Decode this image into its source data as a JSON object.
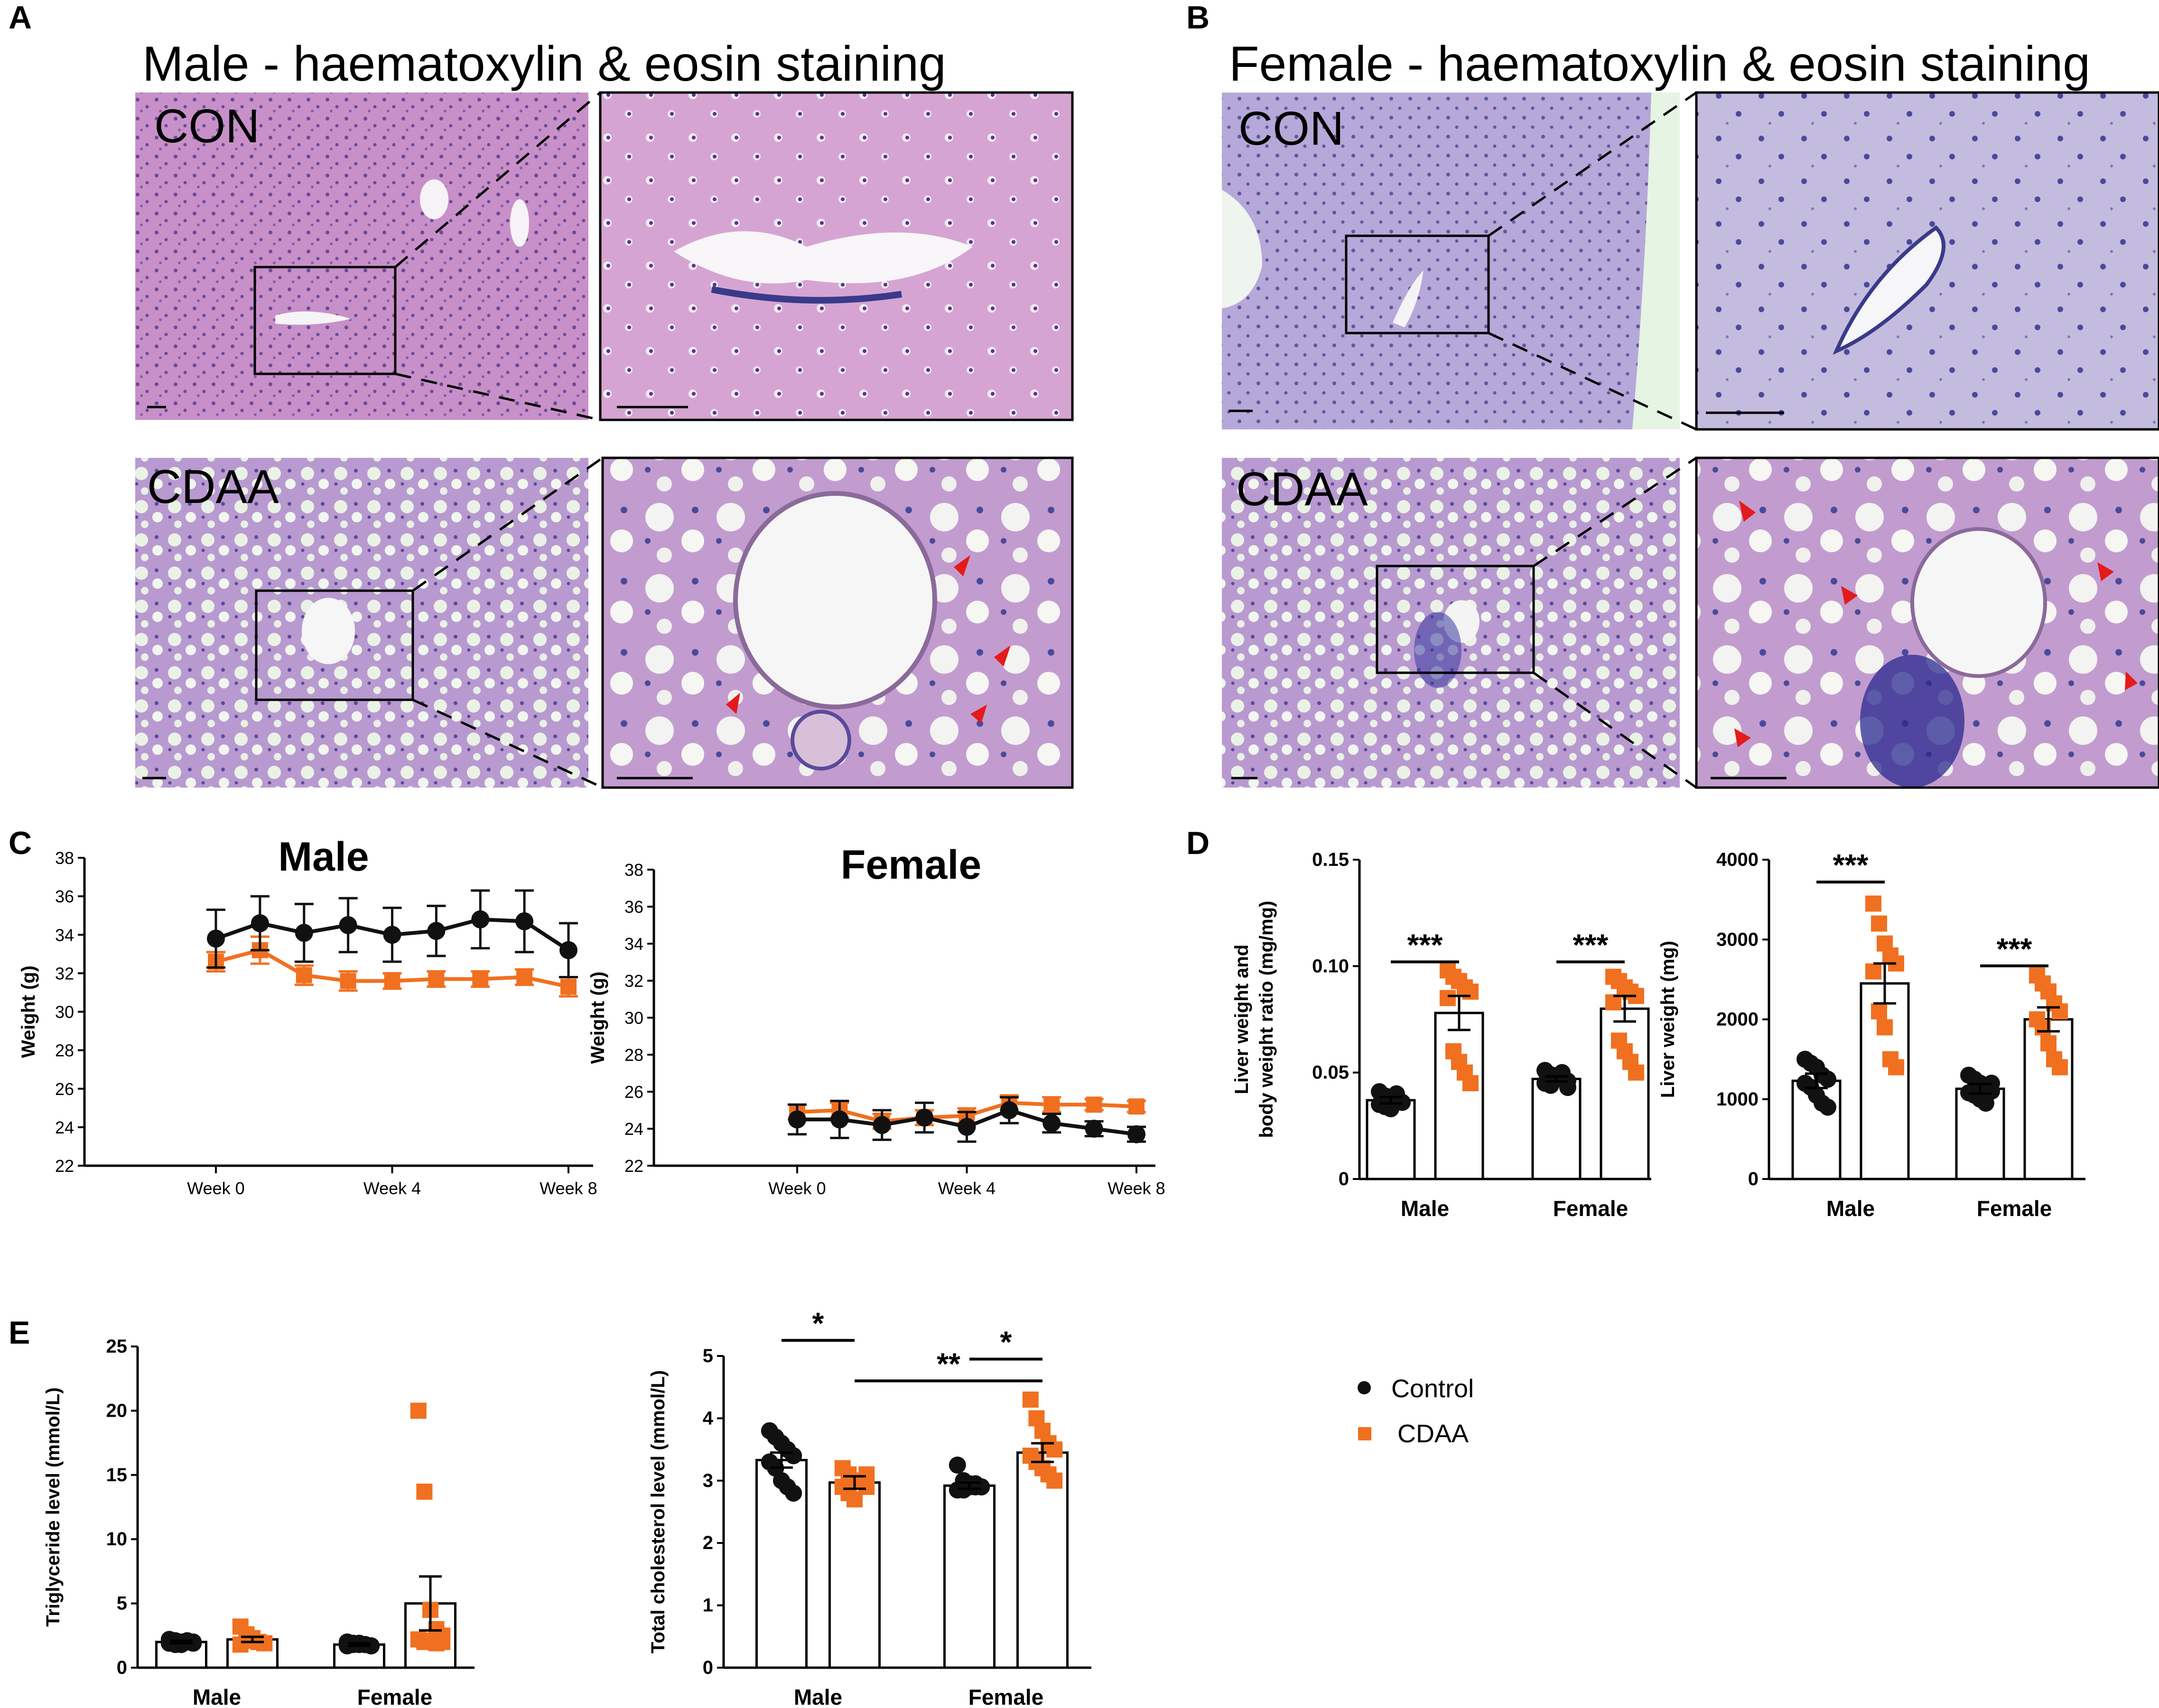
{
  "colors": {
    "control": "#111111",
    "cdaa": "#f07020"
  },
  "panel_labels": {
    "a": "A",
    "b": "B",
    "c": "C",
    "d": "D",
    "e": "E"
  },
  "histology": {
    "male_title": "Male - haematoxylin & eosin staining",
    "female_title": "Female - haematoxylin & eosin staining",
    "con_label": "CON",
    "cdaa_label": "CDAA"
  },
  "legend": {
    "control": "Control",
    "cdaa": "CDAA"
  },
  "chart_data": [
    {
      "id": "c_male",
      "type": "line",
      "title": "Male",
      "xlabel": "",
      "ylabel": "Weight (g)",
      "ylim": [
        22,
        38
      ],
      "yticks": [
        22,
        24,
        26,
        28,
        30,
        32,
        34,
        36,
        38
      ],
      "x": [
        0,
        1,
        2,
        3,
        4,
        5,
        6,
        7,
        8
      ],
      "xticks": [
        {
          "x": 0,
          "label": "Week 0"
        },
        {
          "x": 4,
          "label": "Week 4"
        },
        {
          "x": 8,
          "label": "Week 8"
        }
      ],
      "series": [
        {
          "name": "Control",
          "values": [
            33.8,
            34.6,
            34.1,
            34.5,
            34.0,
            34.2,
            34.8,
            34.7,
            33.2
          ],
          "err": [
            1.5,
            1.4,
            1.5,
            1.4,
            1.4,
            1.3,
            1.5,
            1.6,
            1.4
          ]
        },
        {
          "name": "CDAA",
          "values": [
            32.6,
            33.2,
            31.9,
            31.6,
            31.6,
            31.7,
            31.7,
            31.8,
            31.3
          ],
          "err": [
            0.5,
            0.7,
            0.5,
            0.5,
            0.4,
            0.4,
            0.4,
            0.4,
            0.5
          ]
        }
      ]
    },
    {
      "id": "c_female",
      "type": "line",
      "title": "Female",
      "xlabel": "",
      "ylabel": "Weight (g)",
      "ylim": [
        22,
        38
      ],
      "yticks": [
        22,
        24,
        26,
        28,
        30,
        32,
        34,
        36,
        38
      ],
      "x": [
        0,
        1,
        2,
        3,
        4,
        5,
        6,
        7,
        8
      ],
      "xticks": [
        {
          "x": 0,
          "label": "Week 0"
        },
        {
          "x": 4,
          "label": "Week 4"
        },
        {
          "x": 8,
          "label": "Week 8"
        }
      ],
      "series": [
        {
          "name": "Control",
          "values": [
            24.5,
            24.5,
            24.2,
            24.6,
            24.1,
            25.0,
            24.3,
            24.0,
            23.7
          ],
          "err": [
            0.8,
            1.0,
            0.8,
            0.8,
            0.8,
            0.7,
            0.5,
            0.4,
            0.4
          ]
        },
        {
          "name": "CDAA",
          "values": [
            24.9,
            25.0,
            24.4,
            24.6,
            24.7,
            25.4,
            25.3,
            25.3,
            25.2
          ],
          "err": [
            0.4,
            0.4,
            0.4,
            0.4,
            0.4,
            0.4,
            0.4,
            0.3,
            0.3
          ]
        }
      ]
    },
    {
      "id": "d_ratio",
      "type": "bar",
      "categories": [
        "Male",
        "Female"
      ],
      "ylabel": "Liver weight and body weight ratio (mg/mg)",
      "ylabel_lines": [
        "Liver weight and",
        "body weight ratio (mg/mg)"
      ],
      "ylim": [
        0,
        0.15
      ],
      "yticks": [
        0,
        0.05,
        0.1,
        0.15
      ],
      "ytick_labels": [
        "0",
        "0.05",
        "0.10",
        "0.15"
      ],
      "series": [
        {
          "name": "Control",
          "values": [
            0.037,
            0.047
          ],
          "err": [
            0.0015,
            0.0012
          ],
          "points": [
            [
              0.041,
              0.039,
              0.038,
              0.037,
              0.036,
              0.035,
              0.034,
              0.033,
              0.04,
              0.036
            ],
            [
              0.051,
              0.049,
              0.048,
              0.047,
              0.046,
              0.045,
              0.044,
              0.048,
              0.05,
              0.043
            ]
          ]
        },
        {
          "name": "CDAA",
          "values": [
            0.078,
            0.08
          ],
          "err": [
            0.008,
            0.006
          ],
          "points": [
            [
              0.098,
              0.095,
              0.093,
              0.09,
              0.088,
              0.085,
              0.06,
              0.055,
              0.05,
              0.045
            ],
            [
              0.095,
              0.093,
              0.09,
              0.088,
              0.086,
              0.083,
              0.065,
              0.06,
              0.055,
              0.05
            ]
          ]
        }
      ],
      "brackets": [
        {
          "cat": 0,
          "y": 0.102,
          "text": "***"
        },
        {
          "cat": 1,
          "y": 0.102,
          "text": "***"
        }
      ]
    },
    {
      "id": "d_weight",
      "type": "bar",
      "categories": [
        "Male",
        "Female"
      ],
      "ylabel": "Liver weight (mg)",
      "ylabel_lines": [
        "Liver weight (mg)"
      ],
      "ylim": [
        0,
        4000
      ],
      "yticks": [
        0,
        1000,
        2000,
        3000,
        4000
      ],
      "ytick_labels": [
        "0",
        "1000",
        "2000",
        "3000",
        "4000"
      ],
      "series": [
        {
          "name": "Control",
          "values": [
            1230,
            1130
          ],
          "err": [
            90,
            60
          ],
          "points": [
            [
              1500,
              1450,
              1400,
              1300,
              1250,
              1200,
              1150,
              1050,
              950,
              900
            ],
            [
              1300,
              1250,
              1200,
              1150,
              1100,
              1080,
              1050,
              1000,
              950,
              1200
            ]
          ]
        },
        {
          "name": "CDAA",
          "values": [
            2450,
            2000
          ],
          "err": [
            250,
            150
          ],
          "points": [
            [
              3450,
              3200,
              2950,
              2800,
              2700,
              2600,
              2100,
              1900,
              1500,
              1400
            ],
            [
              2550,
              2450,
              2350,
              2200,
              2100,
              2000,
              1900,
              1700,
              1500,
              1400
            ]
          ]
        }
      ],
      "brackets": [
        {
          "cat": 0,
          "y": 3720,
          "text": "***"
        },
        {
          "cat": 1,
          "y": 2670,
          "text": "***"
        }
      ]
    },
    {
      "id": "e_tg",
      "type": "bar",
      "categories": [
        "Male",
        "Female"
      ],
      "ylabel": "Triglyceride level (mmol/L)",
      "ylabel_lines": [
        "Triglyceride level (mmol/L)"
      ],
      "ylim": [
        0,
        25
      ],
      "yticks": [
        0,
        5,
        10,
        15,
        20,
        25
      ],
      "ytick_labels": [
        "0",
        "5",
        "10",
        "15",
        "20",
        "25"
      ],
      "series": [
        {
          "name": "Control",
          "values": [
            2.0,
            1.8
          ],
          "err": [
            0.1,
            0.1
          ],
          "points": [
            [
              2.2,
              2.1,
              2.0,
              2.0,
              1.9,
              1.9,
              1.8,
              1.8,
              2.1,
              2.0
            ],
            [
              2.0,
              1.9,
              1.8,
              1.8,
              1.7,
              1.7,
              1.8,
              1.9,
              1.8,
              1.7
            ]
          ]
        },
        {
          "name": "CDAA",
          "values": [
            2.2,
            5.0
          ],
          "err": [
            0.2,
            2.1
          ],
          "points": [
            [
              3.2,
              2.6,
              2.2,
              2.0,
              1.9,
              1.8,
              2.1,
              2.3,
              2.0,
              1.9
            ],
            [
              20.0,
              13.7,
              4.5,
              3.0,
              2.5,
              2.2,
              2.0,
              2.1,
              1.9,
              2.0
            ]
          ]
        }
      ],
      "brackets": []
    },
    {
      "id": "e_chol",
      "type": "bar",
      "categories": [
        "Male",
        "Female"
      ],
      "ylabel": "Total cholesterol level (mmol/L)",
      "ylabel_lines": [
        "Total cholesterol level (mmol/L)"
      ],
      "ylim": [
        0,
        5
      ],
      "yticks": [
        0,
        1,
        2,
        3,
        4,
        5
      ],
      "ytick_labels": [
        "0",
        "1",
        "2",
        "3",
        "4",
        "5"
      ],
      "series": [
        {
          "name": "Control",
          "values": [
            3.33,
            2.92
          ],
          "err": [
            0.12,
            0.05
          ],
          "points": [
            [
              3.8,
              3.7,
              3.6,
              3.5,
              3.4,
              3.3,
              3.2,
              3.0,
              2.9,
              2.8
            ],
            [
              3.25,
              3.0,
              2.95,
              2.9,
              2.9,
              2.85,
              2.85,
              2.9,
              2.95,
              2.9
            ]
          ]
        },
        {
          "name": "CDAA",
          "values": [
            2.97,
            3.45
          ],
          "err": [
            0.1,
            0.15
          ],
          "points": [
            [
              3.2,
              3.1,
              3.0,
              3.0,
              2.9,
              2.9,
              2.8,
              2.7,
              3.0,
              3.1
            ],
            [
              4.3,
              4.0,
              3.8,
              3.6,
              3.5,
              3.4,
              3.3,
              3.2,
              3.1,
              3.0
            ]
          ]
        }
      ],
      "brackets": [
        {
          "from": [
            0,
            0
          ],
          "to": [
            1,
            0
          ],
          "y": 5.25,
          "text": "*"
        },
        {
          "from": [
            0,
            1
          ],
          "to": [
            1,
            1
          ],
          "y": 4.95,
          "text": "*"
        },
        {
          "from": [
            1,
            0
          ],
          "to": [
            1,
            1
          ],
          "y": 4.6,
          "text": "**"
        }
      ]
    }
  ]
}
